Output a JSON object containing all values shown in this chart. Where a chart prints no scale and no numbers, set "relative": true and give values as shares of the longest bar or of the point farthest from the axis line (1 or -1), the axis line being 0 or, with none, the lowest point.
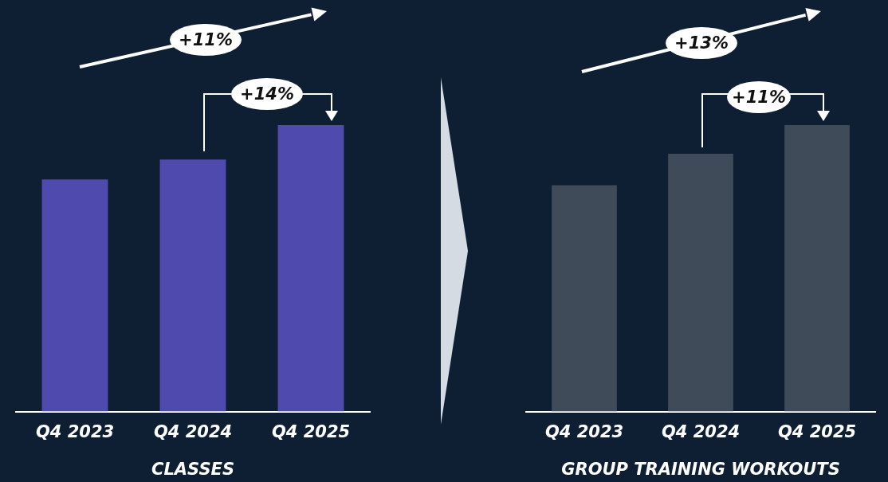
{
  "chart_data": [
    {
      "type": "bar",
      "categories": [
        "Q4 2023",
        "Q4 2024",
        "Q4 2025"
      ],
      "values": [
        0.81,
        0.88,
        1
      ],
      "color": "#4f4aae",
      "relative": true,
      "xlabel": "CLASSES",
      "annotations": [
        "+11%",
        "+14%"
      ]
    },
    {
      "type": "bar",
      "categories": [
        "Q4 2023",
        "Q4 2024",
        "Q4 2025"
      ],
      "values": [
        0.79,
        0.9,
        1
      ],
      "color": "#3f4b59",
      "relative": true,
      "xlabel": "GROUP TRAINING WORKOUTS",
      "annotations": [
        "+13%",
        "+11%"
      ]
    }
  ]
}
